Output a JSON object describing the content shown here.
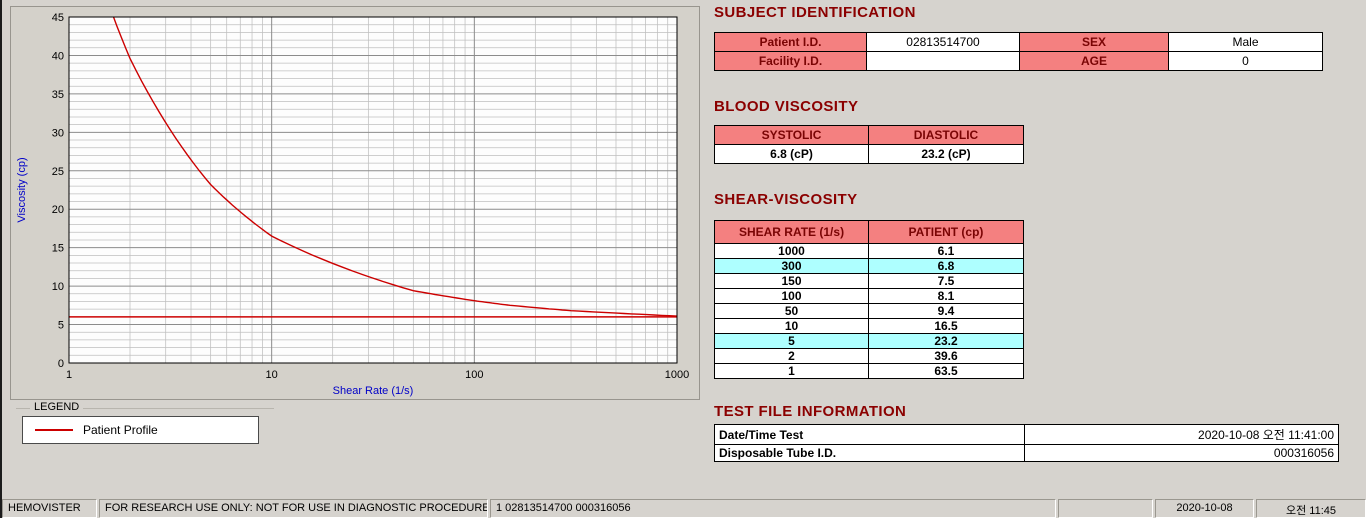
{
  "chart_data": {
    "type": "line",
    "xlabel": "Shear Rate (1/s)",
    "ylabel": "Viscosity (cp)",
    "x_scale": "log",
    "xlim": [
      1,
      1000
    ],
    "ylim": [
      0,
      45
    ],
    "x_ticks": [
      1,
      10,
      100,
      1000
    ],
    "y_ticks": [
      0,
      5,
      10,
      15,
      20,
      25,
      30,
      35,
      40,
      45
    ],
    "grid": "on",
    "series": [
      {
        "name": "Patient Profile",
        "color": "#cc0000",
        "x": [
          1,
          2,
          5,
          10,
          50,
          100,
          150,
          300,
          1000
        ],
        "y": [
          63.5,
          39.6,
          23.2,
          16.5,
          9.4,
          8.1,
          7.5,
          6.8,
          6.1
        ]
      }
    ],
    "reference_line": {
      "y": 6.0,
      "color": "#cc0000"
    },
    "legend": {
      "title": "LEGEND",
      "items": [
        {
          "label": "Patient Profile",
          "color": "#cc0000"
        }
      ]
    }
  },
  "subject_identification": {
    "title": "SUBJECT IDENTIFICATION",
    "fields": [
      {
        "label": "Patient I.D.",
        "value": "02813514700"
      },
      {
        "label": "SEX",
        "value": "Male"
      },
      {
        "label": "Facility I.D.",
        "value": ""
      },
      {
        "label": "AGE",
        "value": "0"
      }
    ]
  },
  "blood_viscosity": {
    "title": "BLOOD VISCOSITY",
    "columns": [
      {
        "header": "SYSTOLIC",
        "value": "6.8 (cP)"
      },
      {
        "header": "DIASTOLIC",
        "value": "23.2 (cP)"
      }
    ]
  },
  "shear_viscosity": {
    "title": "SHEAR-VISCOSITY",
    "col_headers": [
      "SHEAR RATE (1/s)",
      "PATIENT (cp)"
    ],
    "rows": [
      [
        "1000",
        "6.1"
      ],
      [
        "300",
        "6.8"
      ],
      [
        "150",
        "7.5"
      ],
      [
        "100",
        "8.1"
      ],
      [
        "50",
        "9.4"
      ],
      [
        "10",
        "16.5"
      ],
      [
        "5",
        "23.2"
      ],
      [
        "2",
        "39.6"
      ],
      [
        "1",
        "63.5"
      ]
    ],
    "highlight_rows": [
      1,
      6
    ],
    "highlight_color": "#AEFFFF"
  },
  "test_file_information": {
    "title": "TEST FILE INFORMATION",
    "rows": [
      {
        "label": "Date/Time Test",
        "value": "2020-10-08   오전 11:41:00"
      },
      {
        "label": "Disposable Tube I.D.",
        "value": "000316056"
      }
    ]
  },
  "statusbar": {
    "app_name": "HEMOVISTER",
    "notice": "FOR RESEARCH USE ONLY: NOT FOR USE IN DIAGNOSTIC PROCEDURES",
    "record_info": "1  02813514700  000316056",
    "date": "2020-10-08",
    "time": "오전 11:45"
  },
  "colors": {
    "header_bg": "#F48080",
    "header_text": "#7a0404",
    "section_title": "#8B0000",
    "highlight": "#AEFFFF",
    "curve": "#cc0000",
    "axis_label": "#0000c8"
  }
}
